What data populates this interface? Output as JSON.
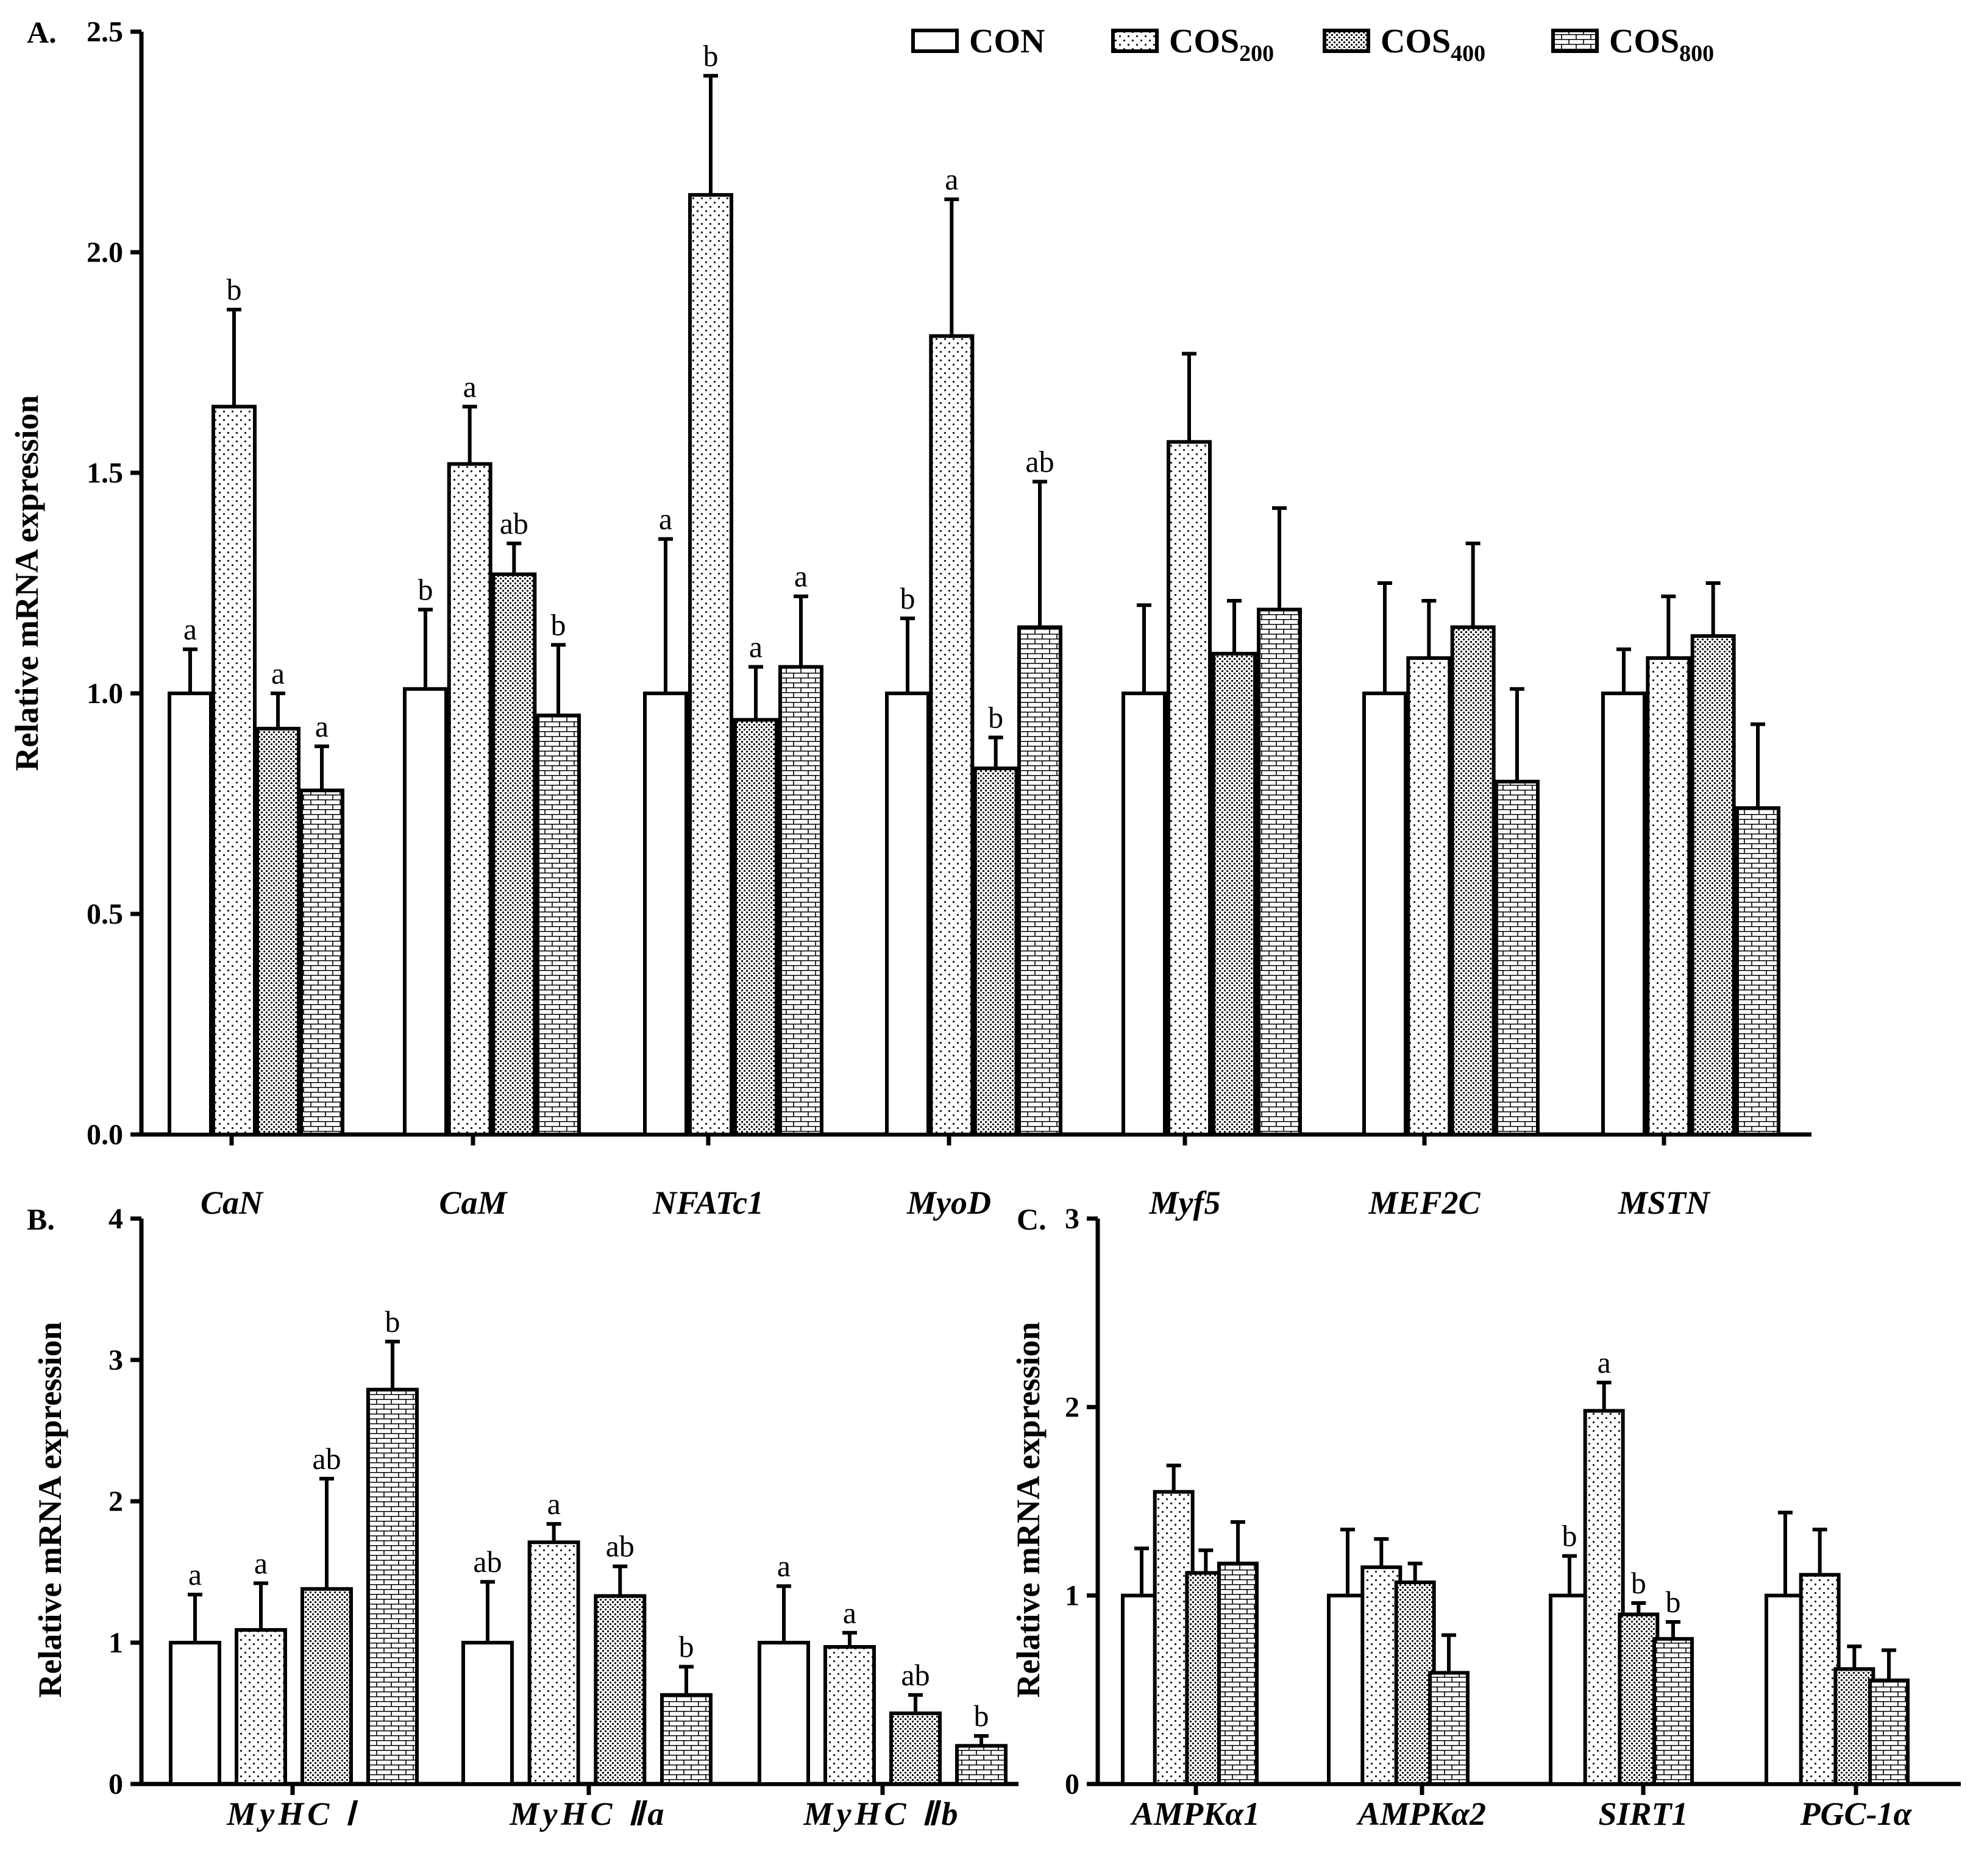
{
  "chart_data": [
    {
      "panel": "A.",
      "type": "bar",
      "ylabel": "Relative mRNA expression",
      "ylim": [
        0,
        2.5
      ],
      "yticks": [
        "0.0",
        "0.5",
        "1.0",
        "1.5",
        "2.0",
        "2.5"
      ],
      "categories": [
        "CaN",
        "CaM",
        "NFATc1",
        "MyoD",
        "Myf5",
        "MEF2C",
        "MSTN"
      ],
      "series": [
        {
          "name": "CON",
          "values": [
            1.0,
            1.01,
            1.0,
            1.0,
            1.0,
            1.0,
            1.0
          ],
          "errors": [
            0.1,
            0.18,
            0.35,
            0.17,
            0.2,
            0.25,
            0.1
          ],
          "labels": [
            "a",
            "b",
            "a",
            "b",
            "",
            "",
            ""
          ]
        },
        {
          "name": "COS200",
          "values": [
            1.65,
            1.52,
            2.13,
            1.81,
            1.57,
            1.08,
            1.08
          ],
          "errors": [
            0.22,
            0.13,
            0.27,
            0.31,
            0.2,
            0.13,
            0.14
          ],
          "labels": [
            "b",
            "a",
            "b",
            "a",
            "",
            "",
            ""
          ]
        },
        {
          "name": "COS400",
          "values": [
            0.92,
            1.27,
            0.94,
            0.83,
            1.09,
            1.15,
            1.13
          ],
          "errors": [
            0.08,
            0.07,
            0.12,
            0.07,
            0.12,
            0.19,
            0.12
          ],
          "labels": [
            "a",
            "ab",
            "a",
            "b",
            "",
            "",
            ""
          ]
        },
        {
          "name": "COS800",
          "values": [
            0.78,
            0.95,
            1.06,
            1.15,
            1.19,
            0.8,
            0.74
          ],
          "errors": [
            0.1,
            0.16,
            0.16,
            0.33,
            0.23,
            0.21,
            0.19
          ],
          "labels": [
            "a",
            "b",
            "a",
            "ab",
            "",
            "",
            ""
          ]
        }
      ]
    },
    {
      "panel": "B.",
      "type": "bar",
      "ylabel": "Relative mRNA expression",
      "ylim": [
        0,
        4
      ],
      "yticks": [
        "0",
        "1",
        "2",
        "3",
        "4"
      ],
      "categories": [
        "MyHC Ⅰ",
        "MyHC Ⅱa",
        "MyHC Ⅱb"
      ],
      "series": [
        {
          "name": "CON",
          "values": [
            1.0,
            1.0,
            1.0
          ],
          "errors": [
            0.34,
            0.43,
            0.4
          ],
          "labels": [
            "a",
            "ab",
            "a"
          ]
        },
        {
          "name": "COS200",
          "values": [
            1.09,
            1.71,
            0.97
          ],
          "errors": [
            0.33,
            0.13,
            0.1
          ],
          "labels": [
            "a",
            "a",
            "a"
          ]
        },
        {
          "name": "COS400",
          "values": [
            1.38,
            1.33,
            0.5
          ],
          "errors": [
            0.78,
            0.21,
            0.13
          ],
          "labels": [
            "ab",
            "ab",
            "ab"
          ]
        },
        {
          "name": "COS800",
          "values": [
            2.79,
            0.63,
            0.27
          ],
          "errors": [
            0.34,
            0.2,
            0.07
          ],
          "labels": [
            "b",
            "b",
            "b"
          ]
        }
      ]
    },
    {
      "panel": "C.",
      "type": "bar",
      "ylabel": "Relative mRNA expression",
      "ylim": [
        0,
        3
      ],
      "yticks": [
        "0",
        "1",
        "2",
        "3"
      ],
      "categories": [
        "AMPKα1",
        "AMPKα2",
        "SIRT1",
        "PGC-1α"
      ],
      "series": [
        {
          "name": "CON",
          "values": [
            1.0,
            1.0,
            1.0,
            1.0
          ],
          "errors": [
            0.25,
            0.35,
            0.21,
            0.44
          ],
          "labels": [
            "",
            "",
            "b",
            ""
          ]
        },
        {
          "name": "COS200",
          "values": [
            1.55,
            1.15,
            1.98,
            1.11
          ],
          "errors": [
            0.14,
            0.15,
            0.15,
            0.24
          ],
          "labels": [
            "",
            "",
            "a",
            ""
          ]
        },
        {
          "name": "COS400",
          "values": [
            1.12,
            1.07,
            0.9,
            0.61
          ],
          "errors": [
            0.12,
            0.1,
            0.06,
            0.12
          ],
          "labels": [
            "",
            "",
            "b",
            ""
          ]
        },
        {
          "name": "COS800",
          "values": [
            1.17,
            0.59,
            0.77,
            0.55
          ],
          "errors": [
            0.22,
            0.2,
            0.09,
            0.16
          ],
          "labels": [
            "",
            "",
            "b",
            ""
          ]
        }
      ]
    }
  ],
  "legend": [
    {
      "name": "CON",
      "base": "CON",
      "sub": ""
    },
    {
      "name": "COS200",
      "base": "COS",
      "sub": "200"
    },
    {
      "name": "COS400",
      "base": "COS",
      "sub": "400"
    },
    {
      "name": "COS800",
      "base": "COS",
      "sub": "800"
    }
  ]
}
